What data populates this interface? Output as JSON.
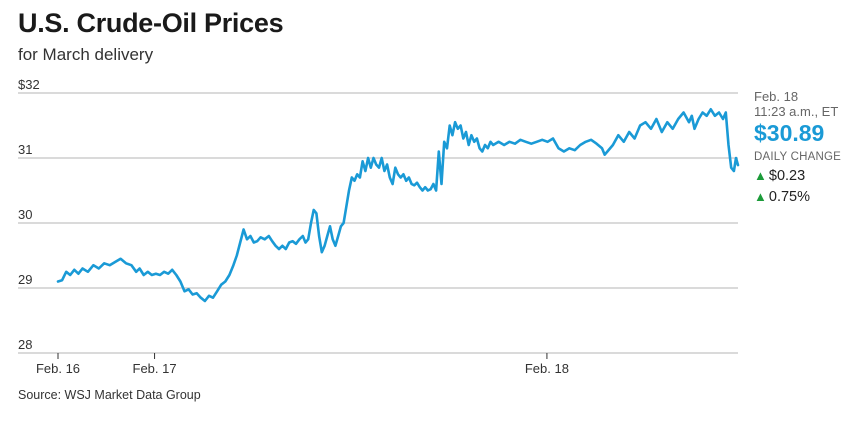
{
  "title": "U.S. Crude-Oil Prices",
  "subtitle": "for March delivery",
  "source": "Source: WSJ Market Data Group",
  "side_panel": {
    "date": "Feb. 18",
    "time": "11:23 a.m., ET",
    "price": "$30.89",
    "daily_change_label": "DAILY CHANGE",
    "change_abs": "$0.23",
    "change_pct": "0.75%"
  },
  "colors": {
    "line": "#1a9ad6",
    "price": "#1a9ad6",
    "up": "#1c9b3a",
    "grid": "#b5b5b5"
  },
  "chart_data": {
    "type": "line",
    "title": "U.S. Crude-Oil Prices",
    "subtitle": "for March delivery",
    "xlabel": "",
    "ylabel": "",
    "ylim": [
      28,
      32
    ],
    "yticks": [
      {
        "value": 32,
        "label": "$32"
      },
      {
        "value": 31,
        "label": "31"
      },
      {
        "value": 30,
        "label": "30"
      },
      {
        "value": 29,
        "label": "29"
      },
      {
        "value": 28,
        "label": "28"
      }
    ],
    "xlim": [
      0,
      100
    ],
    "xticks": [
      {
        "value": 0,
        "label": "Feb. 16"
      },
      {
        "value": 14.2,
        "label": "Feb. 17"
      },
      {
        "value": 71.9,
        "label": "Feb. 18"
      }
    ],
    "grid": true,
    "series": [
      {
        "values": [
          [
            0.0,
            29.1
          ],
          [
            0.6,
            29.12
          ],
          [
            1.2,
            29.25
          ],
          [
            1.8,
            29.2
          ],
          [
            2.4,
            29.28
          ],
          [
            3.0,
            29.22
          ],
          [
            3.6,
            29.3
          ],
          [
            4.4,
            29.25
          ],
          [
            5.2,
            29.35
          ],
          [
            6.0,
            29.3
          ],
          [
            6.8,
            29.38
          ],
          [
            7.6,
            29.35
          ],
          [
            8.4,
            29.4
          ],
          [
            9.2,
            29.45
          ],
          [
            10.0,
            29.38
          ],
          [
            10.8,
            29.35
          ],
          [
            11.5,
            29.25
          ],
          [
            12.0,
            29.3
          ],
          [
            12.6,
            29.2
          ],
          [
            13.2,
            29.25
          ],
          [
            13.8,
            29.2
          ],
          [
            14.4,
            29.22
          ],
          [
            15.0,
            29.2
          ],
          [
            15.6,
            29.25
          ],
          [
            16.2,
            29.22
          ],
          [
            16.8,
            29.28
          ],
          [
            17.4,
            29.2
          ],
          [
            18.0,
            29.1
          ],
          [
            18.6,
            28.95
          ],
          [
            19.2,
            28.98
          ],
          [
            19.8,
            28.9
          ],
          [
            20.4,
            28.92
          ],
          [
            21.0,
            28.85
          ],
          [
            21.6,
            28.8
          ],
          [
            22.2,
            28.88
          ],
          [
            22.8,
            28.85
          ],
          [
            23.4,
            28.95
          ],
          [
            24.0,
            29.05
          ],
          [
            24.6,
            29.1
          ],
          [
            25.2,
            29.2
          ],
          [
            25.8,
            29.35
          ],
          [
            26.3,
            29.5
          ],
          [
            26.8,
            29.7
          ],
          [
            27.3,
            29.9
          ],
          [
            27.8,
            29.75
          ],
          [
            28.3,
            29.8
          ],
          [
            28.8,
            29.7
          ],
          [
            29.3,
            29.72
          ],
          [
            29.8,
            29.78
          ],
          [
            30.4,
            29.75
          ],
          [
            31.0,
            29.8
          ],
          [
            31.5,
            29.72
          ],
          [
            32.0,
            29.65
          ],
          [
            32.5,
            29.6
          ],
          [
            33.0,
            29.65
          ],
          [
            33.5,
            29.6
          ],
          [
            34.0,
            29.7
          ],
          [
            34.5,
            29.72
          ],
          [
            35.0,
            29.68
          ],
          [
            35.5,
            29.75
          ],
          [
            36.0,
            29.8
          ],
          [
            36.4,
            29.7
          ],
          [
            36.8,
            29.75
          ],
          [
            37.2,
            30.0
          ],
          [
            37.6,
            30.2
          ],
          [
            38.0,
            30.15
          ],
          [
            38.4,
            29.8
          ],
          [
            38.8,
            29.55
          ],
          [
            39.2,
            29.65
          ],
          [
            39.6,
            29.8
          ],
          [
            40.0,
            29.95
          ],
          [
            40.4,
            29.75
          ],
          [
            40.8,
            29.65
          ],
          [
            41.2,
            29.8
          ],
          [
            41.6,
            29.95
          ],
          [
            42.0,
            30.0
          ],
          [
            42.4,
            30.25
          ],
          [
            42.8,
            30.5
          ],
          [
            43.2,
            30.7
          ],
          [
            43.6,
            30.65
          ],
          [
            44.0,
            30.75
          ],
          [
            44.4,
            30.7
          ],
          [
            44.8,
            30.95
          ],
          [
            45.2,
            30.8
          ],
          [
            45.6,
            31.0
          ],
          [
            46.0,
            30.85
          ],
          [
            46.4,
            31.0
          ],
          [
            46.8,
            30.9
          ],
          [
            47.2,
            30.85
          ],
          [
            47.6,
            31.0
          ],
          [
            48.0,
            30.8
          ],
          [
            48.4,
            30.9
          ],
          [
            48.8,
            30.7
          ],
          [
            49.2,
            30.6
          ],
          [
            49.6,
            30.85
          ],
          [
            50.0,
            30.75
          ],
          [
            50.4,
            30.7
          ],
          [
            50.8,
            30.75
          ],
          [
            51.2,
            30.65
          ],
          [
            51.6,
            30.7
          ],
          [
            52.0,
            30.6
          ],
          [
            52.4,
            30.58
          ],
          [
            52.8,
            30.62
          ],
          [
            53.2,
            30.55
          ],
          [
            53.6,
            30.5
          ],
          [
            54.0,
            30.55
          ],
          [
            54.4,
            30.5
          ],
          [
            54.8,
            30.52
          ],
          [
            55.2,
            30.6
          ],
          [
            55.6,
            30.5
          ],
          [
            56.0,
            31.1
          ],
          [
            56.4,
            30.6
          ],
          [
            56.8,
            31.25
          ],
          [
            57.2,
            31.15
          ],
          [
            57.6,
            31.5
          ],
          [
            58.0,
            31.35
          ],
          [
            58.4,
            31.55
          ],
          [
            58.8,
            31.45
          ],
          [
            59.2,
            31.5
          ],
          [
            59.6,
            31.3
          ],
          [
            60.0,
            31.4
          ],
          [
            60.4,
            31.2
          ],
          [
            60.8,
            31.35
          ],
          [
            61.2,
            31.25
          ],
          [
            61.6,
            31.3
          ],
          [
            62.0,
            31.15
          ],
          [
            62.4,
            31.1
          ],
          [
            62.8,
            31.2
          ],
          [
            63.2,
            31.15
          ],
          [
            63.6,
            31.25
          ],
          [
            64.0,
            31.2
          ],
          [
            64.8,
            31.25
          ],
          [
            65.6,
            31.2
          ],
          [
            66.4,
            31.25
          ],
          [
            67.2,
            31.22
          ],
          [
            68.0,
            31.28
          ],
          [
            68.8,
            31.25
          ],
          [
            69.6,
            31.22
          ],
          [
            70.4,
            31.25
          ],
          [
            71.2,
            31.28
          ],
          [
            72.0,
            31.25
          ],
          [
            72.8,
            31.3
          ],
          [
            73.6,
            31.15
          ],
          [
            74.4,
            31.1
          ],
          [
            75.2,
            31.15
          ],
          [
            76.0,
            31.12
          ],
          [
            76.8,
            31.2
          ],
          [
            77.6,
            31.25
          ],
          [
            78.4,
            31.28
          ],
          [
            79.2,
            31.22
          ],
          [
            80.0,
            31.15
          ],
          [
            80.4,
            31.05
          ],
          [
            80.8,
            31.1
          ],
          [
            81.6,
            31.2
          ],
          [
            82.4,
            31.35
          ],
          [
            83.2,
            31.25
          ],
          [
            84.0,
            31.4
          ],
          [
            84.8,
            31.3
          ],
          [
            85.6,
            31.5
          ],
          [
            86.4,
            31.55
          ],
          [
            87.2,
            31.45
          ],
          [
            88.0,
            31.6
          ],
          [
            88.8,
            31.4
          ],
          [
            89.6,
            31.55
          ],
          [
            90.4,
            31.45
          ],
          [
            91.2,
            31.6
          ],
          [
            92.0,
            31.7
          ],
          [
            92.8,
            31.55
          ],
          [
            93.2,
            31.65
          ],
          [
            93.6,
            31.45
          ],
          [
            94.2,
            31.6
          ],
          [
            94.8,
            31.7
          ],
          [
            95.4,
            31.65
          ],
          [
            96.0,
            31.75
          ],
          [
            96.6,
            31.65
          ],
          [
            97.2,
            31.7
          ],
          [
            97.8,
            31.6
          ],
          [
            98.2,
            31.7
          ],
          [
            98.6,
            31.2
          ],
          [
            99.0,
            30.85
          ],
          [
            99.4,
            30.8
          ],
          [
            99.7,
            31.0
          ],
          [
            100.0,
            30.89
          ]
        ]
      }
    ]
  }
}
